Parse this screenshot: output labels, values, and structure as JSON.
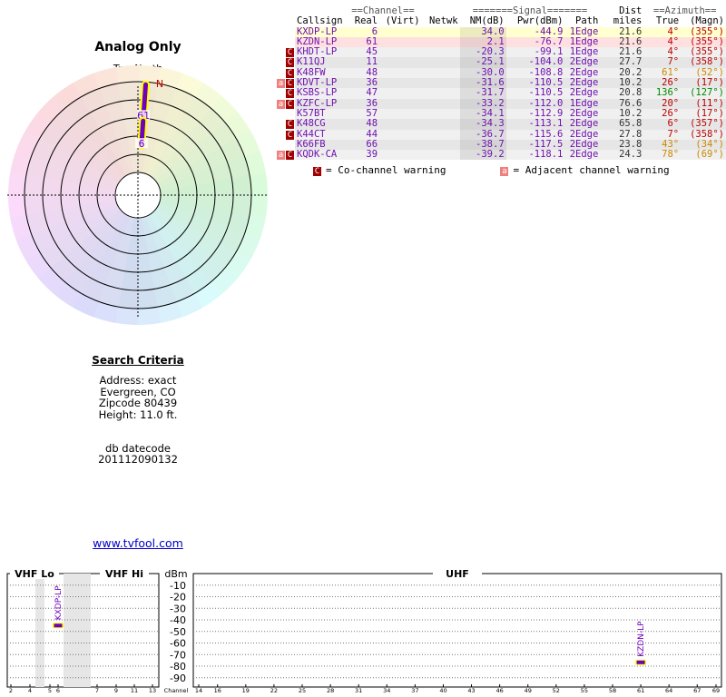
{
  "polar": {
    "title": "Analog Only",
    "north_label": "TrueNorth",
    "n_label": "N",
    "markers": [
      {
        "label": "61",
        "azimuth": 4
      },
      {
        "label": "6",
        "azimuth": 4
      }
    ]
  },
  "table": {
    "group_headers": [
      "==Channel==",
      "=======Signal=======",
      "Dist",
      "==Azimuth=="
    ],
    "columns": [
      "Callsign",
      "Real",
      "(Virt)",
      "Netwk",
      "NM(dB)",
      "Pwr(dBm)",
      "Path",
      "miles",
      "True",
      "(Magn)"
    ],
    "rows": [
      {
        "warn": [],
        "callsign": "KXDP-LP",
        "real": "6",
        "nm": "34.0",
        "pwr": "-44.9",
        "path": "1Edge",
        "dist": "21.6",
        "true": "4°",
        "magn": "(355°)"
      },
      {
        "warn": [],
        "callsign": "KZDN-LP",
        "real": "61",
        "nm": "2.1",
        "pwr": "-76.7",
        "path": "1Edge",
        "dist": "21.6",
        "true": "4°",
        "magn": "(355°)"
      },
      {
        "warn": [
          "C"
        ],
        "callsign": "KHDT-LP",
        "real": "45",
        "nm": "-20.3",
        "pwr": "-99.1",
        "path": "1Edge",
        "dist": "21.6",
        "true": "4°",
        "magn": "(355°)"
      },
      {
        "warn": [
          "C"
        ],
        "callsign": "K11QJ",
        "real": "11",
        "nm": "-25.1",
        "pwr": "-104.0",
        "path": "2Edge",
        "dist": "27.7",
        "true": "7°",
        "magn": "(358°)"
      },
      {
        "warn": [
          "C"
        ],
        "callsign": "K48FW",
        "real": "48",
        "nm": "-30.0",
        "pwr": "-108.8",
        "path": "2Edge",
        "dist": "20.2",
        "true": "61°",
        "magn": "(52°)"
      },
      {
        "warn": [
          "a",
          "C"
        ],
        "callsign": "KDVT-LP",
        "real": "36",
        "nm": "-31.6",
        "pwr": "-110.5",
        "path": "2Edge",
        "dist": "10.2",
        "true": "26°",
        "magn": "(17°)"
      },
      {
        "warn": [
          "C"
        ],
        "callsign": "KSBS-LP",
        "real": "47",
        "nm": "-31.7",
        "pwr": "-110.5",
        "path": "2Edge",
        "dist": "20.8",
        "true": "136°",
        "magn": "(127°)"
      },
      {
        "warn": [
          "a",
          "C"
        ],
        "callsign": "KZFC-LP",
        "real": "36",
        "nm": "-33.2",
        "pwr": "-112.0",
        "path": "1Edge",
        "dist": "76.6",
        "true": "20°",
        "magn": "(11°)"
      },
      {
        "warn": [],
        "callsign": "K57BT",
        "real": "57",
        "nm": "-34.1",
        "pwr": "-112.9",
        "path": "2Edge",
        "dist": "10.2",
        "true": "26°",
        "magn": "(17°)"
      },
      {
        "warn": [
          "C"
        ],
        "callsign": "K48CG",
        "real": "48",
        "nm": "-34.3",
        "pwr": "-113.1",
        "path": "2Edge",
        "dist": "65.8",
        "true": "6°",
        "magn": "(357°)"
      },
      {
        "warn": [
          "C"
        ],
        "callsign": "K44CT",
        "real": "44",
        "nm": "-36.7",
        "pwr": "-115.6",
        "path": "2Edge",
        "dist": "27.8",
        "true": "7°",
        "magn": "(358°)"
      },
      {
        "warn": [],
        "callsign": "K66FB",
        "real": "66",
        "nm": "-38.7",
        "pwr": "-117.5",
        "path": "2Edge",
        "dist": "23.8",
        "true": "43°",
        "magn": "(34°)"
      },
      {
        "warn": [
          "a",
          "C"
        ],
        "callsign": "KQDK-CA",
        "real": "39",
        "nm": "-39.2",
        "pwr": "-118.1",
        "path": "2Edge",
        "dist": "24.3",
        "true": "78°",
        "magn": "(69°)"
      }
    ]
  },
  "legend": [
    {
      "badge": "C",
      "text": "= Co-channel warning"
    },
    {
      "badge": "a",
      "text": "= Adjacent channel warning"
    }
  ],
  "search": {
    "title": "Search Criteria",
    "lines": [
      "Address: exact",
      "Evergreen, CO",
      "Zipcode 80439",
      "Height: 11.0 ft."
    ]
  },
  "db": {
    "label": "db datecode",
    "value": "201112090132"
  },
  "link": "www.tvfool.com",
  "spectrum": {
    "panels": [
      "VHF Lo",
      "VHF Hi",
      "dBm",
      "UHF"
    ],
    "axis_label": "Channel",
    "ylim": [
      -98,
      0
    ],
    "yticks": [
      -10,
      -20,
      -30,
      -40,
      -50,
      -60,
      -70,
      -80,
      -90
    ],
    "vhf_ticks": [
      2,
      4,
      5,
      6,
      7,
      9,
      11,
      13
    ],
    "uhf_ticks": [
      14,
      16,
      19,
      22,
      25,
      28,
      31,
      34,
      37,
      40,
      43,
      46,
      49,
      52,
      55,
      58,
      61,
      64,
      67,
      69
    ],
    "stations": [
      {
        "name": "KXDP-LP",
        "channel": 6,
        "value": -44.9
      },
      {
        "name": "KZDN-LP",
        "channel": 61,
        "value": -76.7
      }
    ]
  }
}
